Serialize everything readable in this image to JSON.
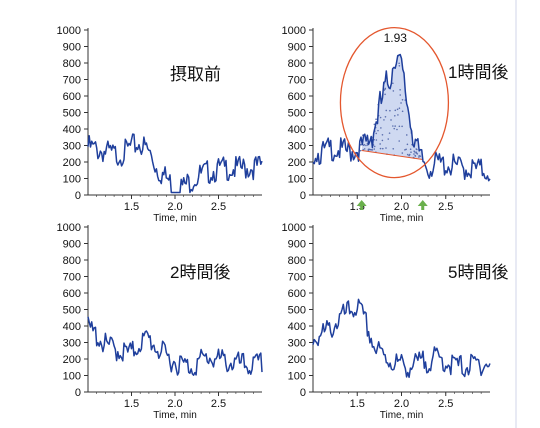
{
  "chart_data": [
    {
      "type": "line",
      "label": "摂取前",
      "xlabel": "Time, min",
      "xticks": [
        "1.5",
        "2.0",
        "2.5"
      ],
      "yticks": [
        "0",
        "100",
        "200",
        "300",
        "400",
        "500",
        "600",
        "700",
        "800",
        "900",
        "1000"
      ],
      "xlim": [
        1.0,
        3.0
      ],
      "ylim": [
        0,
        1000
      ],
      "series": [
        {
          "x": [
            1.0,
            1.1,
            1.2,
            1.3,
            1.4,
            1.5,
            1.6,
            1.7,
            1.8,
            1.9,
            2.0,
            2.1,
            2.2,
            2.3,
            2.4,
            2.5,
            2.6,
            2.7,
            2.8,
            2.9,
            3.0
          ],
          "values": [
            330,
            310,
            300,
            280,
            290,
            330,
            350,
            300,
            190,
            140,
            80,
            90,
            130,
            160,
            180,
            190,
            200,
            195,
            200,
            205,
            210
          ]
        }
      ]
    },
    {
      "type": "line",
      "label": "1時間後",
      "xlabel": "Time, min",
      "xticks": [
        "1.5",
        "2.0",
        "2.5"
      ],
      "yticks": [
        "0",
        "100",
        "200",
        "300",
        "400",
        "500",
        "600",
        "700",
        "800",
        "900",
        "1000"
      ],
      "xlim": [
        1.0,
        3.0
      ],
      "ylim": [
        0,
        1000
      ],
      "annotation": "1.93",
      "peak_x": 1.93,
      "series": [
        {
          "x": [
            1.0,
            1.1,
            1.2,
            1.3,
            1.4,
            1.5,
            1.6,
            1.7,
            1.8,
            1.9,
            1.93,
            2.0,
            2.1,
            2.2,
            2.3,
            2.4,
            2.5,
            2.6,
            2.7,
            2.8,
            2.9,
            3.0
          ],
          "values": [
            300,
            290,
            320,
            310,
            300,
            310,
            350,
            480,
            660,
            830,
            930,
            800,
            520,
            270,
            200,
            230,
            220,
            210,
            200,
            195,
            190,
            180
          ]
        }
      ]
    },
    {
      "type": "line",
      "label": "2時間後",
      "xlabel": "Time, min",
      "xticks": [
        "1.5",
        "2.0",
        "2.5"
      ],
      "yticks": [
        "0",
        "100",
        "200",
        "300",
        "400",
        "500",
        "600",
        "700",
        "800",
        "900",
        "1000"
      ],
      "xlim": [
        1.0,
        3.0
      ],
      "ylim": [
        0,
        1000
      ],
      "series": [
        {
          "x": [
            1.0,
            1.1,
            1.2,
            1.3,
            1.4,
            1.5,
            1.6,
            1.7,
            1.8,
            1.9,
            2.0,
            2.1,
            2.2,
            2.3,
            2.4,
            2.5,
            2.6,
            2.7,
            2.8,
            2.9,
            3.0
          ],
          "values": [
            420,
            380,
            320,
            300,
            280,
            270,
            340,
            360,
            300,
            250,
            220,
            200,
            190,
            230,
            250,
            230,
            220,
            210,
            200,
            195,
            210
          ]
        }
      ]
    },
    {
      "type": "line",
      "label": "5時間後",
      "xlabel": "Time, min",
      "xticks": [
        "1.5",
        "2.0",
        "2.5"
      ],
      "yticks": [
        "0",
        "100",
        "200",
        "300",
        "400",
        "500",
        "600",
        "700",
        "800",
        "900",
        "1000"
      ],
      "xlim": [
        1.0,
        3.0
      ],
      "ylim": [
        0,
        1000
      ],
      "series": [
        {
          "x": [
            1.0,
            1.1,
            1.2,
            1.3,
            1.4,
            1.5,
            1.6,
            1.7,
            1.8,
            1.9,
            2.0,
            2.1,
            2.2,
            2.3,
            2.4,
            2.5,
            2.6,
            2.7,
            2.8,
            2.9,
            3.0
          ],
          "values": [
            360,
            380,
            420,
            480,
            520,
            560,
            450,
            300,
            250,
            220,
            200,
            190,
            210,
            230,
            240,
            220,
            200,
            190,
            200,
            210,
            205
          ]
        }
      ]
    }
  ],
  "colors": {
    "line": "#1f3f9c",
    "ellipse": "#e4572e",
    "arrow": "#6ab04c",
    "baseline": "#e4572e",
    "fill": "#c7d2ef"
  }
}
